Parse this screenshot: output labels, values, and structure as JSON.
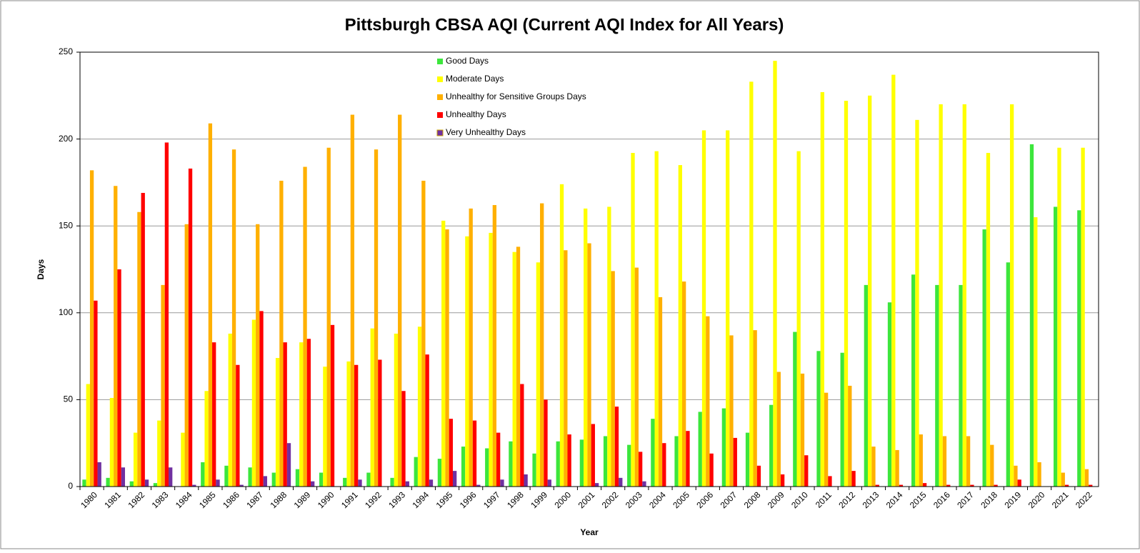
{
  "chart_data": {
    "type": "bar",
    "title": "Pittsburgh CBSA AQI (Current AQI Index for All Years)",
    "x_label": "Year",
    "y_label": "Days",
    "categories": [
      "1980",
      "1981",
      "1982",
      "1983",
      "1984",
      "1985",
      "1986",
      "1987",
      "1988",
      "1989",
      "1990",
      "1991",
      "1992",
      "1993",
      "1994",
      "1995",
      "1996",
      "1997",
      "1998",
      "1999",
      "2000",
      "2001",
      "2002",
      "2003",
      "2004",
      "2005",
      "2006",
      "2007",
      "2008",
      "2009",
      "2010",
      "2011",
      "2012",
      "2013",
      "2014",
      "2015",
      "2016",
      "2017",
      "2018",
      "2019",
      "2020",
      "2021",
      "2022"
    ],
    "series": [
      {
        "name": "Good Days",
        "color": "#3ce63c",
        "values": [
          4,
          5,
          3,
          2,
          0,
          14,
          12,
          11,
          8,
          10,
          8,
          5,
          8,
          5,
          17,
          16,
          23,
          22,
          26,
          19,
          26,
          27,
          29,
          24,
          39,
          29,
          43,
          45,
          31,
          47,
          89,
          78,
          77,
          116,
          106,
          122,
          116,
          116,
          148,
          129,
          197,
          161,
          159
        ]
      },
      {
        "name": "Moderate Days",
        "color": "#ffff00",
        "values": [
          59,
          51,
          31,
          38,
          31,
          55,
          88,
          96,
          74,
          83,
          69,
          72,
          91,
          88,
          92,
          153,
          144,
          146,
          135,
          129,
          174,
          160,
          161,
          192,
          193,
          185,
          205,
          205,
          233,
          245,
          193,
          227,
          222,
          225,
          237,
          211,
          220,
          220,
          192,
          220,
          155,
          195,
          195
        ]
      },
      {
        "name": "Unhealthy for Sensitive Groups Days",
        "color": "#ffb000",
        "values": [
          182,
          173,
          158,
          116,
          151,
          209,
          194,
          151,
          176,
          184,
          195,
          214,
          194,
          214,
          176,
          148,
          160,
          162,
          138,
          163,
          136,
          140,
          124,
          126,
          109,
          118,
          98,
          87,
          90,
          66,
          65,
          54,
          58,
          23,
          21,
          30,
          29,
          29,
          24,
          12,
          14,
          8,
          10
        ]
      },
      {
        "name": "Unhealthy Days",
        "color": "#ff0000",
        "values": [
          107,
          125,
          169,
          198,
          183,
          83,
          70,
          101,
          83,
          85,
          93,
          70,
          73,
          55,
          76,
          39,
          38,
          31,
          59,
          50,
          30,
          36,
          46,
          20,
          25,
          32,
          19,
          28,
          12,
          7,
          18,
          6,
          9,
          1,
          1,
          2,
          1,
          1,
          1,
          4,
          0,
          1,
          1
        ]
      },
      {
        "name": "Very Unhealthy Days",
        "color": "#7030a0",
        "values": [
          14,
          11,
          4,
          11,
          1,
          4,
          1,
          6,
          25,
          3,
          0,
          4,
          0,
          3,
          4,
          9,
          1,
          4,
          7,
          4,
          0,
          2,
          5,
          3,
          0,
          0,
          0,
          0,
          0,
          0,
          0,
          0,
          0,
          0,
          0,
          0,
          0,
          0,
          0,
          0,
          0,
          0,
          0
        ]
      }
    ],
    "ylim": [
      0,
      250
    ],
    "yticks": [
      0,
      50,
      100,
      150,
      200,
      250
    ],
    "grid": true
  }
}
